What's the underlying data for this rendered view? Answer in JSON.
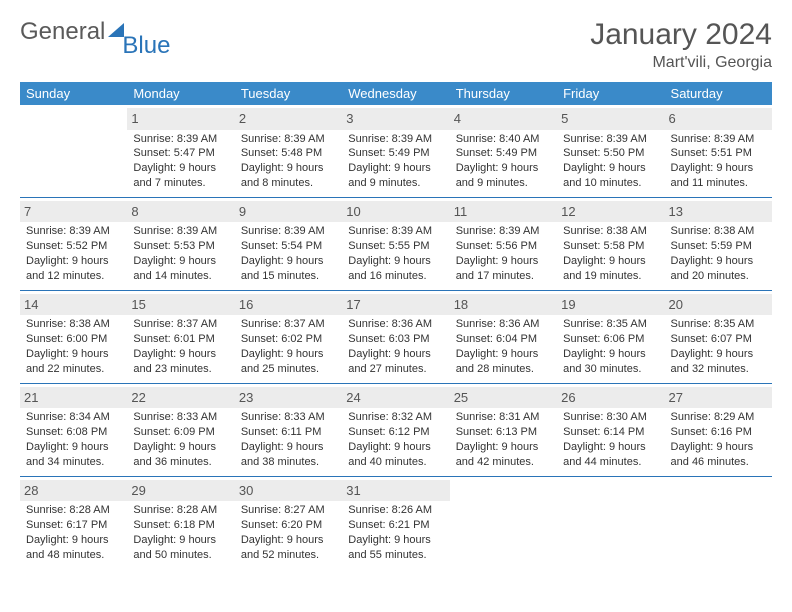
{
  "logo": {
    "general": "General",
    "blue": "Blue"
  },
  "title": "January 2024",
  "location": "Mart'vili, Georgia",
  "dayHeaders": [
    "Sunday",
    "Monday",
    "Tuesday",
    "Wednesday",
    "Thursday",
    "Friday",
    "Saturday"
  ],
  "colors": {
    "headerBg": "#3a8ac9",
    "headerText": "#ffffff",
    "rowBorder": "#2a74b8",
    "dayBg": "#ececec",
    "accent": "#2a74b8"
  },
  "startOffset": 1,
  "days": [
    {
      "n": 1,
      "sunrise": "8:39 AM",
      "sunset": "5:47 PM",
      "daylight": "9 hours and 7 minutes."
    },
    {
      "n": 2,
      "sunrise": "8:39 AM",
      "sunset": "5:48 PM",
      "daylight": "9 hours and 8 minutes."
    },
    {
      "n": 3,
      "sunrise": "8:39 AM",
      "sunset": "5:49 PM",
      "daylight": "9 hours and 9 minutes."
    },
    {
      "n": 4,
      "sunrise": "8:40 AM",
      "sunset": "5:49 PM",
      "daylight": "9 hours and 9 minutes."
    },
    {
      "n": 5,
      "sunrise": "8:39 AM",
      "sunset": "5:50 PM",
      "daylight": "9 hours and 10 minutes."
    },
    {
      "n": 6,
      "sunrise": "8:39 AM",
      "sunset": "5:51 PM",
      "daylight": "9 hours and 11 minutes."
    },
    {
      "n": 7,
      "sunrise": "8:39 AM",
      "sunset": "5:52 PM",
      "daylight": "9 hours and 12 minutes."
    },
    {
      "n": 8,
      "sunrise": "8:39 AM",
      "sunset": "5:53 PM",
      "daylight": "9 hours and 14 minutes."
    },
    {
      "n": 9,
      "sunrise": "8:39 AM",
      "sunset": "5:54 PM",
      "daylight": "9 hours and 15 minutes."
    },
    {
      "n": 10,
      "sunrise": "8:39 AM",
      "sunset": "5:55 PM",
      "daylight": "9 hours and 16 minutes."
    },
    {
      "n": 11,
      "sunrise": "8:39 AM",
      "sunset": "5:56 PM",
      "daylight": "9 hours and 17 minutes."
    },
    {
      "n": 12,
      "sunrise": "8:38 AM",
      "sunset": "5:58 PM",
      "daylight": "9 hours and 19 minutes."
    },
    {
      "n": 13,
      "sunrise": "8:38 AM",
      "sunset": "5:59 PM",
      "daylight": "9 hours and 20 minutes."
    },
    {
      "n": 14,
      "sunrise": "8:38 AM",
      "sunset": "6:00 PM",
      "daylight": "9 hours and 22 minutes."
    },
    {
      "n": 15,
      "sunrise": "8:37 AM",
      "sunset": "6:01 PM",
      "daylight": "9 hours and 23 minutes."
    },
    {
      "n": 16,
      "sunrise": "8:37 AM",
      "sunset": "6:02 PM",
      "daylight": "9 hours and 25 minutes."
    },
    {
      "n": 17,
      "sunrise": "8:36 AM",
      "sunset": "6:03 PM",
      "daylight": "9 hours and 27 minutes."
    },
    {
      "n": 18,
      "sunrise": "8:36 AM",
      "sunset": "6:04 PM",
      "daylight": "9 hours and 28 minutes."
    },
    {
      "n": 19,
      "sunrise": "8:35 AM",
      "sunset": "6:06 PM",
      "daylight": "9 hours and 30 minutes."
    },
    {
      "n": 20,
      "sunrise": "8:35 AM",
      "sunset": "6:07 PM",
      "daylight": "9 hours and 32 minutes."
    },
    {
      "n": 21,
      "sunrise": "8:34 AM",
      "sunset": "6:08 PM",
      "daylight": "9 hours and 34 minutes."
    },
    {
      "n": 22,
      "sunrise": "8:33 AM",
      "sunset": "6:09 PM",
      "daylight": "9 hours and 36 minutes."
    },
    {
      "n": 23,
      "sunrise": "8:33 AM",
      "sunset": "6:11 PM",
      "daylight": "9 hours and 38 minutes."
    },
    {
      "n": 24,
      "sunrise": "8:32 AM",
      "sunset": "6:12 PM",
      "daylight": "9 hours and 40 minutes."
    },
    {
      "n": 25,
      "sunrise": "8:31 AM",
      "sunset": "6:13 PM",
      "daylight": "9 hours and 42 minutes."
    },
    {
      "n": 26,
      "sunrise": "8:30 AM",
      "sunset": "6:14 PM",
      "daylight": "9 hours and 44 minutes."
    },
    {
      "n": 27,
      "sunrise": "8:29 AM",
      "sunset": "6:16 PM",
      "daylight": "9 hours and 46 minutes."
    },
    {
      "n": 28,
      "sunrise": "8:28 AM",
      "sunset": "6:17 PM",
      "daylight": "9 hours and 48 minutes."
    },
    {
      "n": 29,
      "sunrise": "8:28 AM",
      "sunset": "6:18 PM",
      "daylight": "9 hours and 50 minutes."
    },
    {
      "n": 30,
      "sunrise": "8:27 AM",
      "sunset": "6:20 PM",
      "daylight": "9 hours and 52 minutes."
    },
    {
      "n": 31,
      "sunrise": "8:26 AM",
      "sunset": "6:21 PM",
      "daylight": "9 hours and 55 minutes."
    }
  ],
  "labels": {
    "sunrise": "Sunrise: ",
    "sunset": "Sunset: ",
    "daylight": "Daylight: "
  }
}
